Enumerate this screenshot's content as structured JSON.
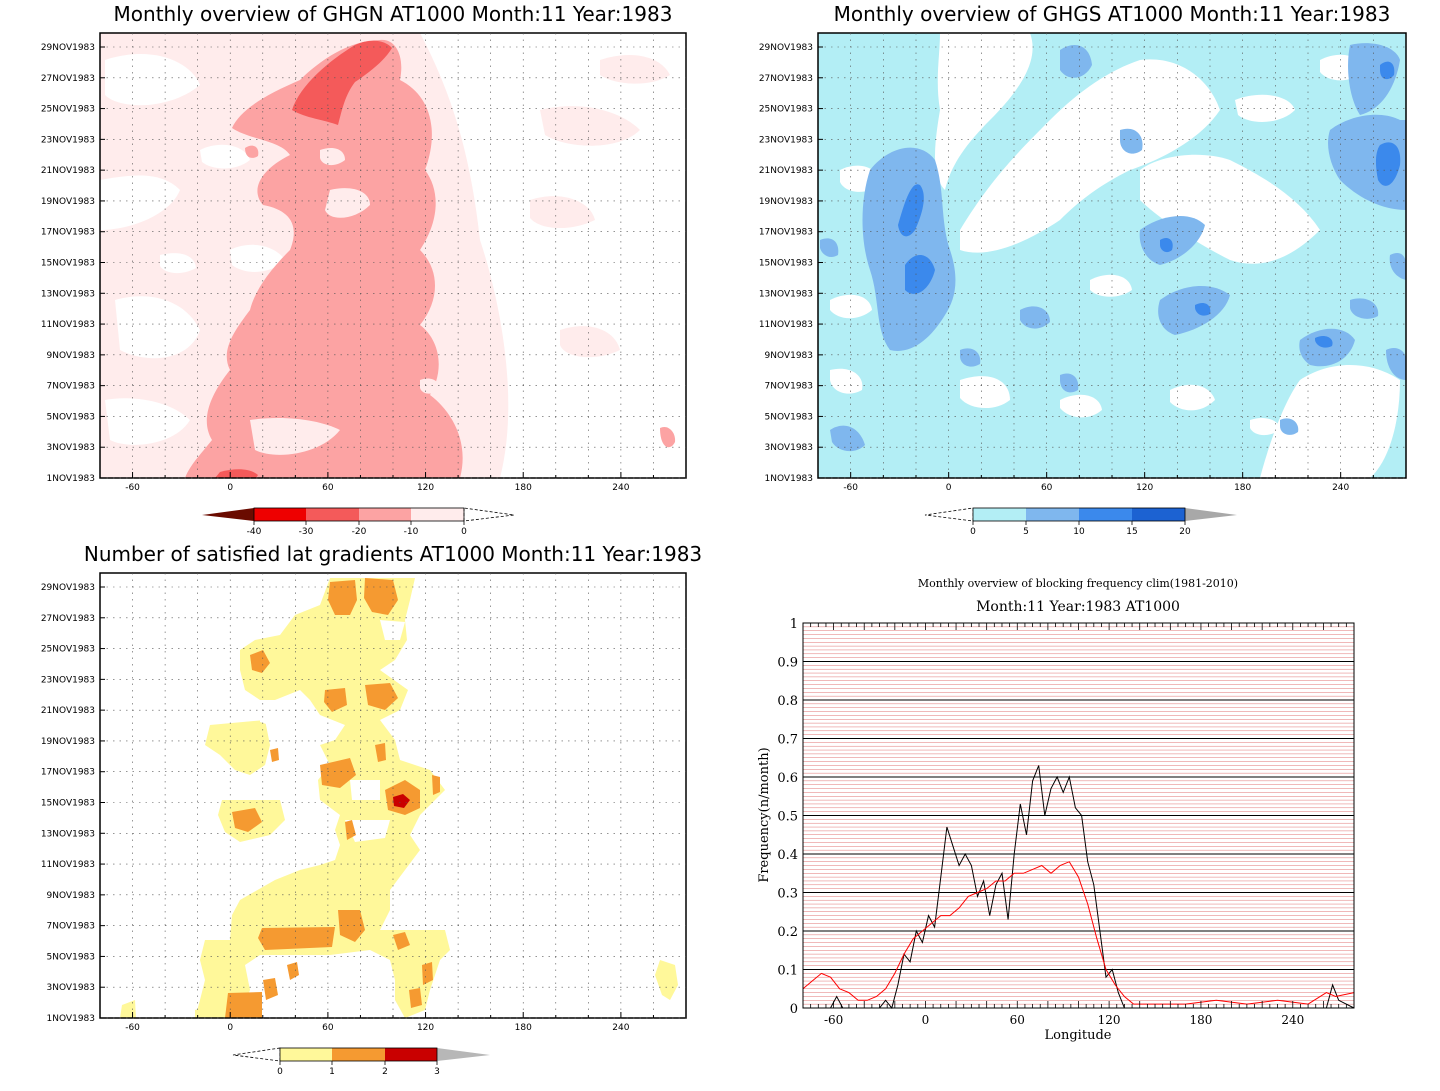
{
  "colors": {
    "red_1": "#ffecec",
    "red_2": "#fca3a3",
    "red_3": "#f45a5a",
    "red_4": "#ee0000",
    "red_5": "#6a0b00",
    "blue_1": "#b3eef5",
    "blue_2": "#7fb7ee",
    "blue_3": "#3b89ec",
    "blue_4": "#1c62d2",
    "blue_5": "#a8a8a8",
    "yel_1": "#fff89a",
    "yel_2": "#f59a31",
    "yel_3": "#c90000",
    "yel_4": "#b7b7b7",
    "clim_line": "#ff0000",
    "obs_line": "#000000",
    "grid_red": "#c80000"
  },
  "date_ticks": [
    "1NOV1983",
    "3NOV1983",
    "5NOV1983",
    "7NOV1983",
    "9NOV1983",
    "11NOV1983",
    "13NOV1983",
    "15NOV1983",
    "17NOV1983",
    "19NOV1983",
    "21NOV1983",
    "23NOV1983",
    "25NOV1983",
    "27NOV1983",
    "29NOV1983"
  ],
  "lon_ticks": [
    "-60",
    "0",
    "60",
    "120",
    "180",
    "240"
  ],
  "panels": {
    "ghgn": {
      "title": "Monthly overview of GHGN AT1000 Month:11 Year:1983",
      "colorbar_labels": [
        "-40",
        "-30",
        "-20",
        "-10",
        "0"
      ]
    },
    "ghgs": {
      "title": "Monthly overview of GHGS AT1000 Month:11 Year:1983",
      "colorbar_labels": [
        "0",
        "5",
        "10",
        "15",
        "20"
      ]
    },
    "sat": {
      "title": "Number of satisfied lat gradients AT1000 Month:11 Year:1983",
      "colorbar_labels": [
        "0",
        "1",
        "2",
        "3"
      ]
    },
    "freq": {
      "title": "Monthly overview of blocking frequency clim(1981-2010)",
      "subtitle": "Month:11 Year:1983  AT1000",
      "xlabel": "Longitude",
      "ylabel": "Frequency(n/month)",
      "y_ticks": [
        "0",
        "0.1",
        "0.2",
        "0.3",
        "0.4",
        "0.5",
        "0.6",
        "0.7",
        "0.8",
        "0.9",
        "1"
      ],
      "x_ticks": [
        "-60",
        "0",
        "60",
        "120",
        "180",
        "240"
      ]
    }
  },
  "chart_data": [
    {
      "type": "heatmap",
      "title": "Monthly overview of GHGN AT1000 Month:11 Year:1983",
      "x_range": [
        -80,
        280
      ],
      "x_ticks": [
        -60,
        0,
        60,
        120,
        180,
        240
      ],
      "y_ticks": [
        "1NOV1983",
        "3NOV1983",
        "5NOV1983",
        "7NOV1983",
        "9NOV1983",
        "11NOV1983",
        "13NOV1983",
        "15NOV1983",
        "17NOV1983",
        "19NOV1983",
        "21NOV1983",
        "23NOV1983",
        "25NOV1983",
        "27NOV1983",
        "29NOV1983"
      ],
      "levels": [
        -40,
        -30,
        -20,
        -10,
        0
      ],
      "grid": true
    },
    {
      "type": "heatmap",
      "title": "Monthly overview of GHGS AT1000 Month:11 Year:1983",
      "x_range": [
        -80,
        280
      ],
      "x_ticks": [
        -60,
        0,
        60,
        120,
        180,
        240
      ],
      "y_ticks": [
        "1NOV1983",
        "3NOV1983",
        "5NOV1983",
        "7NOV1983",
        "9NOV1983",
        "11NOV1983",
        "13NOV1983",
        "15NOV1983",
        "17NOV1983",
        "19NOV1983",
        "21NOV1983",
        "23NOV1983",
        "25NOV1983",
        "27NOV1983",
        "29NOV1983"
      ],
      "levels": [
        0,
        5,
        10,
        15,
        20
      ],
      "grid": true
    },
    {
      "type": "heatmap",
      "title": "Number of satisfied lat gradients AT1000 Month:11 Year:1983",
      "x_range": [
        -80,
        280
      ],
      "x_ticks": [
        -60,
        0,
        60,
        120,
        180,
        240
      ],
      "y_ticks": [
        "1NOV1983",
        "3NOV1983",
        "5NOV1983",
        "7NOV1983",
        "9NOV1983",
        "11NOV1983",
        "13NOV1983",
        "15NOV1983",
        "17NOV1983",
        "19NOV1983",
        "21NOV1983",
        "23NOV1983",
        "25NOV1983",
        "27NOV1983",
        "29NOV1983"
      ],
      "levels": [
        0,
        1,
        2,
        3
      ],
      "grid": true
    },
    {
      "type": "line",
      "title": "Monthly overview of blocking frequency clim(1981-2010)",
      "subtitle": "Month:11 Year:1983  AT1000",
      "xlabel": "Longitude",
      "ylabel": "Frequency(n/month)",
      "xlim": [
        -80,
        280
      ],
      "ylim": [
        0,
        1
      ],
      "series": [
        {
          "color": "#000000",
          "x": [
            -80,
            -62,
            -58,
            -54,
            -50,
            -30,
            -26,
            -22,
            -18,
            -14,
            -10,
            -6,
            -2,
            2,
            6,
            10,
            14,
            18,
            22,
            26,
            30,
            34,
            38,
            42,
            46,
            50,
            54,
            58,
            62,
            66,
            70,
            74,
            78,
            82,
            86,
            90,
            94,
            98,
            102,
            106,
            110,
            114,
            118,
            122,
            126,
            130,
            140,
            180,
            240,
            262,
            266,
            270,
            280
          ],
          "y": [
            0,
            0,
            0.03,
            0,
            0,
            0,
            0.02,
            0,
            0.06,
            0.14,
            0.12,
            0.2,
            0.17,
            0.24,
            0.21,
            0.34,
            0.47,
            0.42,
            0.37,
            0.4,
            0.37,
            0.29,
            0.33,
            0.24,
            0.32,
            0.35,
            0.23,
            0.4,
            0.53,
            0.45,
            0.59,
            0.63,
            0.5,
            0.57,
            0.6,
            0.56,
            0.6,
            0.52,
            0.5,
            0.38,
            0.32,
            0.2,
            0.08,
            0.1,
            0.04,
            0,
            0,
            0,
            0,
            0,
            0.06,
            0.02,
            0
          ]
        },
        {
          "color": "#ff0000",
          "x": [
            -80,
            -74,
            -68,
            -62,
            -56,
            -50,
            -44,
            -38,
            -32,
            -26,
            -20,
            -14,
            -8,
            -2,
            4,
            10,
            16,
            22,
            28,
            34,
            40,
            46,
            52,
            58,
            64,
            70,
            76,
            82,
            88,
            94,
            100,
            106,
            112,
            118,
            124,
            130,
            136,
            150,
            170,
            190,
            210,
            230,
            250,
            262,
            268,
            280
          ],
          "y": [
            0.05,
            0.07,
            0.09,
            0.08,
            0.05,
            0.04,
            0.02,
            0.02,
            0.03,
            0.05,
            0.09,
            0.14,
            0.18,
            0.2,
            0.22,
            0.24,
            0.24,
            0.26,
            0.29,
            0.3,
            0.31,
            0.33,
            0.33,
            0.35,
            0.35,
            0.36,
            0.37,
            0.35,
            0.37,
            0.38,
            0.34,
            0.27,
            0.18,
            0.1,
            0.06,
            0.03,
            0.01,
            0.01,
            0.01,
            0.02,
            0.01,
            0.02,
            0.01,
            0.04,
            0.03,
            0.04
          ]
        }
      ]
    }
  ]
}
